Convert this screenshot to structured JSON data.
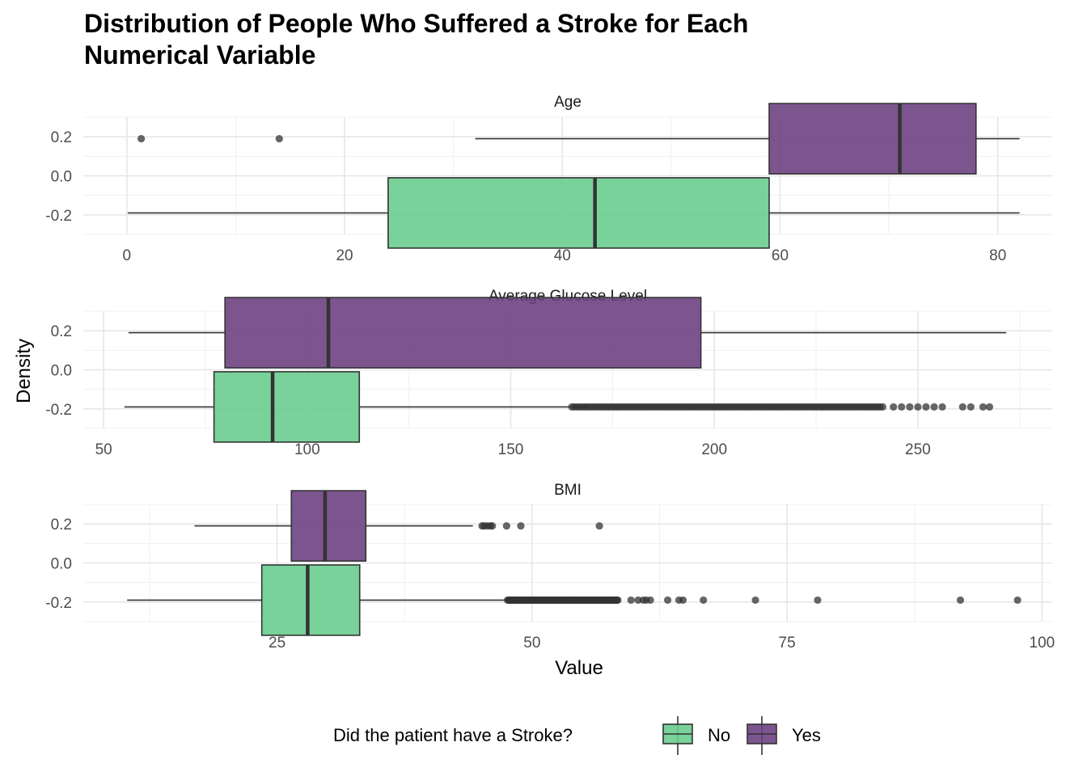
{
  "chart_data": {
    "type": "boxplot",
    "title_lines": [
      "Distribution of People Who Suffered a Stroke for Each",
      "Numerical Variable"
    ],
    "xlabel": "Value",
    "ylabel": "Density",
    "grid": true,
    "legend": {
      "title": "Did the patient have a Stroke?",
      "position": "bottom",
      "entries": [
        {
          "label": "No",
          "color": "#66CC8C"
        },
        {
          "label": "Yes",
          "color": "#6A3D7F"
        }
      ]
    },
    "y_ticks": [
      "0.2",
      "0.0",
      "-0.2"
    ],
    "y_tick_values": [
      0.2,
      0,
      -0.2
    ],
    "ylim": [
      -0.3,
      0.3
    ],
    "panels": [
      {
        "name": "Age",
        "xlim": [
          -4,
          85
        ],
        "x_ticks": [
          0,
          20,
          40,
          60,
          80
        ],
        "x_tick_labels": [
          "0",
          "20",
          "40",
          "60",
          "80"
        ],
        "boxes": [
          {
            "group": "No",
            "y": -0.19,
            "min": 0.08,
            "q1": 24,
            "median": 43,
            "q3": 59,
            "max": 82,
            "outliers": []
          },
          {
            "group": "Yes",
            "y": 0.19,
            "min": 32,
            "q1": 59,
            "median": 71,
            "q3": 78,
            "max": 82,
            "outliers": [
              1.32,
              14
            ]
          }
        ]
      },
      {
        "name": "Average Glucose Level",
        "xlim": [
          45,
          283
        ],
        "x_ticks": [
          50,
          100,
          150,
          200,
          250
        ],
        "x_tick_labels": [
          "50",
          "100",
          "150",
          "200",
          "250"
        ],
        "boxes": [
          {
            "group": "No",
            "y": -0.19,
            "min": 55.1,
            "q1": 77.1,
            "median": 91.5,
            "q3": 112.8,
            "max": 169,
            "outliers_range": [
              165,
              242
            ],
            "outliers": [
              244,
              246,
              248,
              250,
              252,
              254,
              256,
              261,
              263,
              266,
              267.6
            ]
          },
          {
            "group": "Yes",
            "y": 0.19,
            "min": 56.1,
            "q1": 79.8,
            "median": 105.2,
            "q3": 196.7,
            "max": 271.7,
            "outliers": []
          }
        ]
      },
      {
        "name": "BMI",
        "xlim": [
          6,
          101
        ],
        "x_ticks": [
          25,
          50,
          75,
          100
        ],
        "x_tick_labels": [
          "25",
          "50",
          "75",
          "100"
        ],
        "boxes": [
          {
            "group": "No",
            "y": -0.19,
            "min": 10.3,
            "q1": 23.5,
            "median": 28,
            "q3": 33.1,
            "max": 47.5,
            "outliers_range": [
              47.6,
              58.5
            ],
            "outliers": [
              59.7,
              60.4,
              60.9,
              61.2,
              61.6,
              63.3,
              64.4,
              64.8,
              66.8,
              71.9,
              78,
              92,
              97.6
            ]
          },
          {
            "group": "Yes",
            "y": 0.19,
            "min": 16.9,
            "q1": 26.4,
            "median": 29.7,
            "q3": 33.7,
            "max": 44.2,
            "outliers": [
              45.1,
              45.3,
              45.6,
              45.9,
              46.1,
              47.5,
              48.9,
              56.6
            ]
          }
        ]
      }
    ]
  }
}
